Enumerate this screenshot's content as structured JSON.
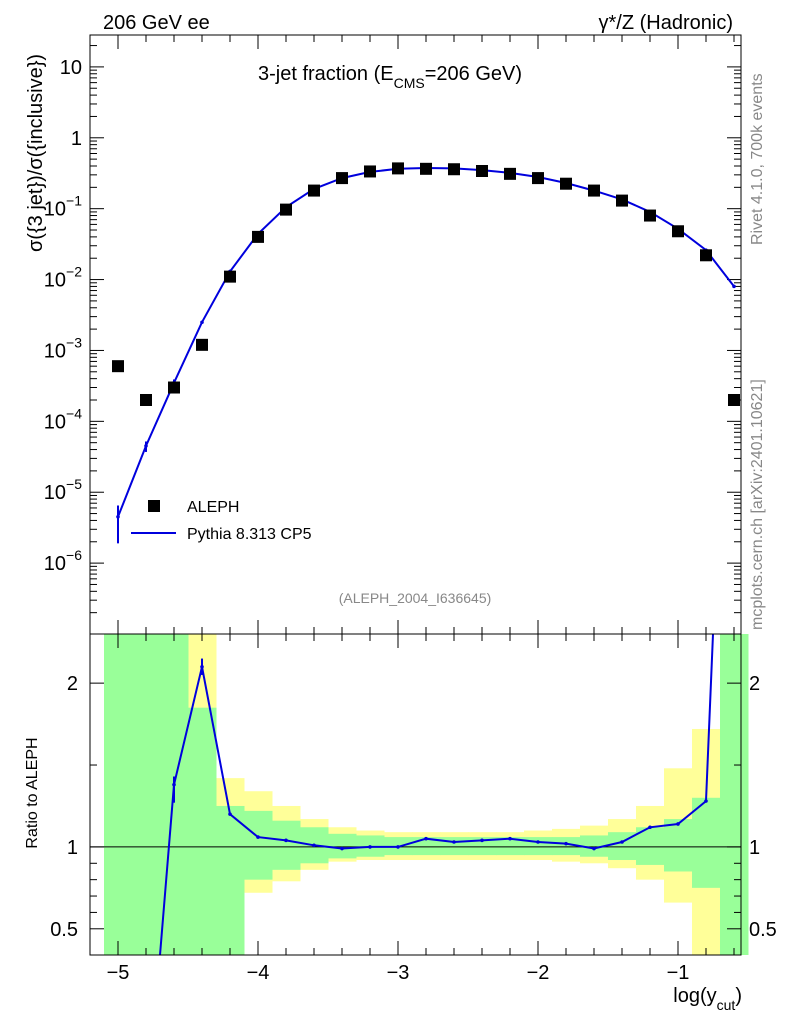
{
  "chart_data": {
    "type": "line",
    "header_left": "206 GeV ee",
    "header_right": "γ*/Z (Hadronic)",
    "title_main": "3-jet fraction (E",
    "title_sub": "CMS",
    "title_rest": "=206 GeV)",
    "ylabel_top": "σ({3 jet})/σ({inclusive})",
    "ylabel_bottom": "Ratio to ALEPH",
    "xlabel_main": "log(y",
    "xlabel_sub": "cut",
    "xlabel_close": ")",
    "analysis_tag": "(ALEPH_2004_I636645)",
    "side_rivet": "Rivet 4.1.0,  700k events",
    "side_mcplots": "mcplots.cern.ch [arXiv:2401.10621]",
    "legend": [
      {
        "name": "ALEPH",
        "marker": "square",
        "color": "#000000"
      },
      {
        "name": "Pythia 8.313 CP5",
        "marker": "line",
        "color": "#0000dd"
      }
    ],
    "x_range": [
      -5.2,
      -0.55
    ],
    "x_ticks": [
      -5,
      -4,
      -3,
      -2,
      -1
    ],
    "x_tick_labels": [
      "−5",
      "−4",
      "−3",
      "−2",
      "−1"
    ],
    "y_top_range_log10": [
      -7.0,
      1.45
    ],
    "y_top_ticks": [
      {
        "exp": 1,
        "base": "10",
        "sup": ""
      },
      {
        "exp": 0,
        "base": "1",
        "sup": ""
      },
      {
        "exp": -1,
        "base": "10",
        "sup": "−1"
      },
      {
        "exp": -2,
        "base": "10",
        "sup": "−2"
      },
      {
        "exp": -3,
        "base": "10",
        "sup": "−3"
      },
      {
        "exp": -4,
        "base": "10",
        "sup": "−4"
      },
      {
        "exp": -5,
        "base": "10",
        "sup": "−5"
      },
      {
        "exp": -6,
        "base": "10",
        "sup": "−6"
      }
    ],
    "ratio_range": [
      0.34,
      2.3
    ],
    "ratio_ticks": [
      0.5,
      1,
      2
    ],
    "ratio_tick_labels": [
      "0.5",
      "1",
      "2"
    ],
    "data_x": [
      -5.0,
      -4.8,
      -4.6,
      -4.4,
      -4.2,
      -4.0,
      -3.8,
      -3.6,
      -3.4,
      -3.2,
      -3.0,
      -2.8,
      -2.6,
      -2.4,
      -2.2,
      -2.0,
      -1.8,
      -1.6,
      -1.4,
      -1.2,
      -1.0,
      -0.8,
      -0.6
    ],
    "data_y": [
      0.0006,
      0.0002,
      0.0003,
      0.0012,
      0.011,
      0.04,
      0.097,
      0.18,
      0.27,
      0.335,
      0.37,
      0.365,
      0.36,
      0.34,
      0.31,
      0.27,
      0.225,
      0.18,
      0.13,
      0.08,
      0.048,
      0.022,
      0.0002
    ],
    "mc_x": [
      -5.0,
      -4.8,
      -4.6,
      -4.4,
      -4.2,
      -4.0,
      -3.8,
      -3.6,
      -3.4,
      -3.2,
      -3.0,
      -2.8,
      -2.6,
      -2.4,
      -2.2,
      -2.0,
      -1.8,
      -1.6,
      -1.4,
      -1.2,
      -1.0,
      -0.8,
      -0.6
    ],
    "mc_y": [
      4.5e-06,
      4.5e-05,
      0.00035,
      0.0025,
      0.013,
      0.044,
      0.105,
      0.19,
      0.27,
      0.33,
      0.365,
      0.375,
      0.37,
      0.35,
      0.32,
      0.28,
      0.23,
      0.18,
      0.135,
      0.09,
      0.052,
      0.026,
      0.008
    ],
    "mc_err_y": [
      {
        "x": -5.0,
        "lo": 1.9e-06,
        "hi": 6.5e-06
      },
      {
        "x": -4.8,
        "lo": 3.7e-05,
        "hi": 5.2e-05
      },
      {
        "x": -4.6,
        "lo": 0.00031,
        "hi": 0.00039
      }
    ],
    "ratio_edges": [
      -5.1,
      -4.9,
      -4.7,
      -4.5,
      -4.3,
      -4.1,
      -3.9,
      -3.7,
      -3.5,
      -3.3,
      -3.1,
      -2.9,
      -2.7,
      -2.5,
      -2.3,
      -2.1,
      -1.9,
      -1.7,
      -1.5,
      -1.3,
      -1.1,
      -0.9,
      -0.7,
      -0.5
    ],
    "ratio_band_green": [
      [
        0.34,
        2.3
      ],
      [
        0.34,
        2.3
      ],
      [
        0.34,
        2.3
      ],
      [
        0.34,
        1.85
      ],
      [
        0.34,
        1.25
      ],
      [
        0.8,
        1.22
      ],
      [
        0.86,
        1.16
      ],
      [
        0.9,
        1.12
      ],
      [
        0.93,
        1.08
      ],
      [
        0.94,
        1.07
      ],
      [
        0.95,
        1.06
      ],
      [
        0.95,
        1.06
      ],
      [
        0.95,
        1.06
      ],
      [
        0.95,
        1.06
      ],
      [
        0.95,
        1.06
      ],
      [
        0.95,
        1.06
      ],
      [
        0.95,
        1.06
      ],
      [
        0.94,
        1.07
      ],
      [
        0.92,
        1.09
      ],
      [
        0.89,
        1.12
      ],
      [
        0.85,
        1.17
      ],
      [
        0.75,
        1.3
      ],
      [
        0.34,
        2.3
      ]
    ],
    "ratio_band_yellow": [
      [
        0.34,
        2.3
      ],
      [
        0.34,
        2.3
      ],
      [
        0.34,
        2.3
      ],
      [
        0.34,
        2.3
      ],
      [
        0.5,
        1.42
      ],
      [
        0.72,
        1.34
      ],
      [
        0.79,
        1.25
      ],
      [
        0.86,
        1.17
      ],
      [
        0.91,
        1.12
      ],
      [
        0.92,
        1.1
      ],
      [
        0.92,
        1.09
      ],
      [
        0.92,
        1.09
      ],
      [
        0.92,
        1.09
      ],
      [
        0.92,
        1.09
      ],
      [
        0.92,
        1.09
      ],
      [
        0.92,
        1.1
      ],
      [
        0.91,
        1.11
      ],
      [
        0.9,
        1.13
      ],
      [
        0.87,
        1.17
      ],
      [
        0.8,
        1.25
      ],
      [
        0.66,
        1.48
      ],
      [
        0.34,
        1.72
      ],
      [
        0.34,
        2.3
      ]
    ],
    "ratio_x": [
      -4.7,
      -4.6,
      -4.4,
      -4.2,
      -4.0,
      -3.8,
      -3.6,
      -3.4,
      -3.2,
      -3.0,
      -2.8,
      -2.6,
      -2.4,
      -2.2,
      -2.0,
      -1.8,
      -1.6,
      -1.4,
      -1.2,
      -1.0,
      -0.8,
      -0.75
    ],
    "ratio_y": [
      0.34,
      1.38,
      2.1,
      1.2,
      1.06,
      1.04,
      1.01,
      0.99,
      1.0,
      1.0,
      1.05,
      1.03,
      1.04,
      1.05,
      1.03,
      1.02,
      0.99,
      1.03,
      1.12,
      1.14,
      1.28,
      2.3
    ],
    "ratio_err": [
      {
        "x": -4.6,
        "lo": 1.27,
        "hi": 1.43
      },
      {
        "x": -4.4,
        "lo": 2.05,
        "hi": 2.15
      }
    ],
    "colors": {
      "green": "#99ff99",
      "yellow": "#ffff99",
      "mc": "#0000dd",
      "data": "#000000",
      "grey": "#888888"
    }
  }
}
